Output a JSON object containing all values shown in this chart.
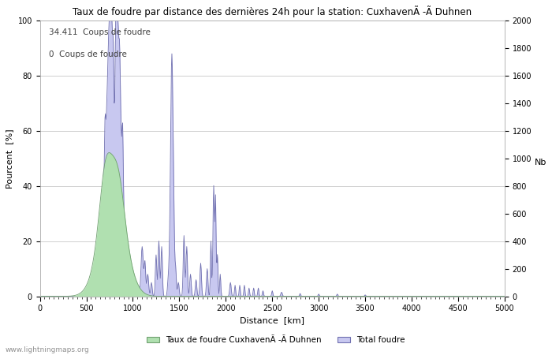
{
  "title_display": "Taux de foudre par distance des dernières 24h pour la station: CuxhavenÃ -Ã Duhnen",
  "xlabel": "Distance  [km]",
  "ylabel_left": "Pourcent  [%]",
  "ylabel_right": "Nb",
  "annotation_line1": "34.411  Coups de foudre",
  "annotation_line2": "0  Coups de foudre",
  "legend_green": "Taux de foudre CuxhavenÃ -Ã Duhnen",
  "legend_blue": "Total foudre",
  "xlim": [
    0,
    5000
  ],
  "ylim_left": [
    0,
    100
  ],
  "ylim_right": [
    0,
    2000
  ],
  "yticks_left": [
    0,
    20,
    40,
    60,
    80,
    100
  ],
  "yticks_right": [
    0,
    200,
    400,
    600,
    800,
    1000,
    1200,
    1400,
    1600,
    1800,
    2000
  ],
  "xticks": [
    0,
    500,
    1000,
    1500,
    2000,
    2500,
    3000,
    3500,
    4000,
    4500,
    5000
  ],
  "color_fill_blue": "#c8c8f0",
  "color_line_blue": "#7070b0",
  "color_fill_green": "#b0e0b0",
  "color_line_green": "#70a070",
  "watermark": "www.lightningmaps.org",
  "bg_color": "#ffffff",
  "grid_color": "#c8c8c8"
}
